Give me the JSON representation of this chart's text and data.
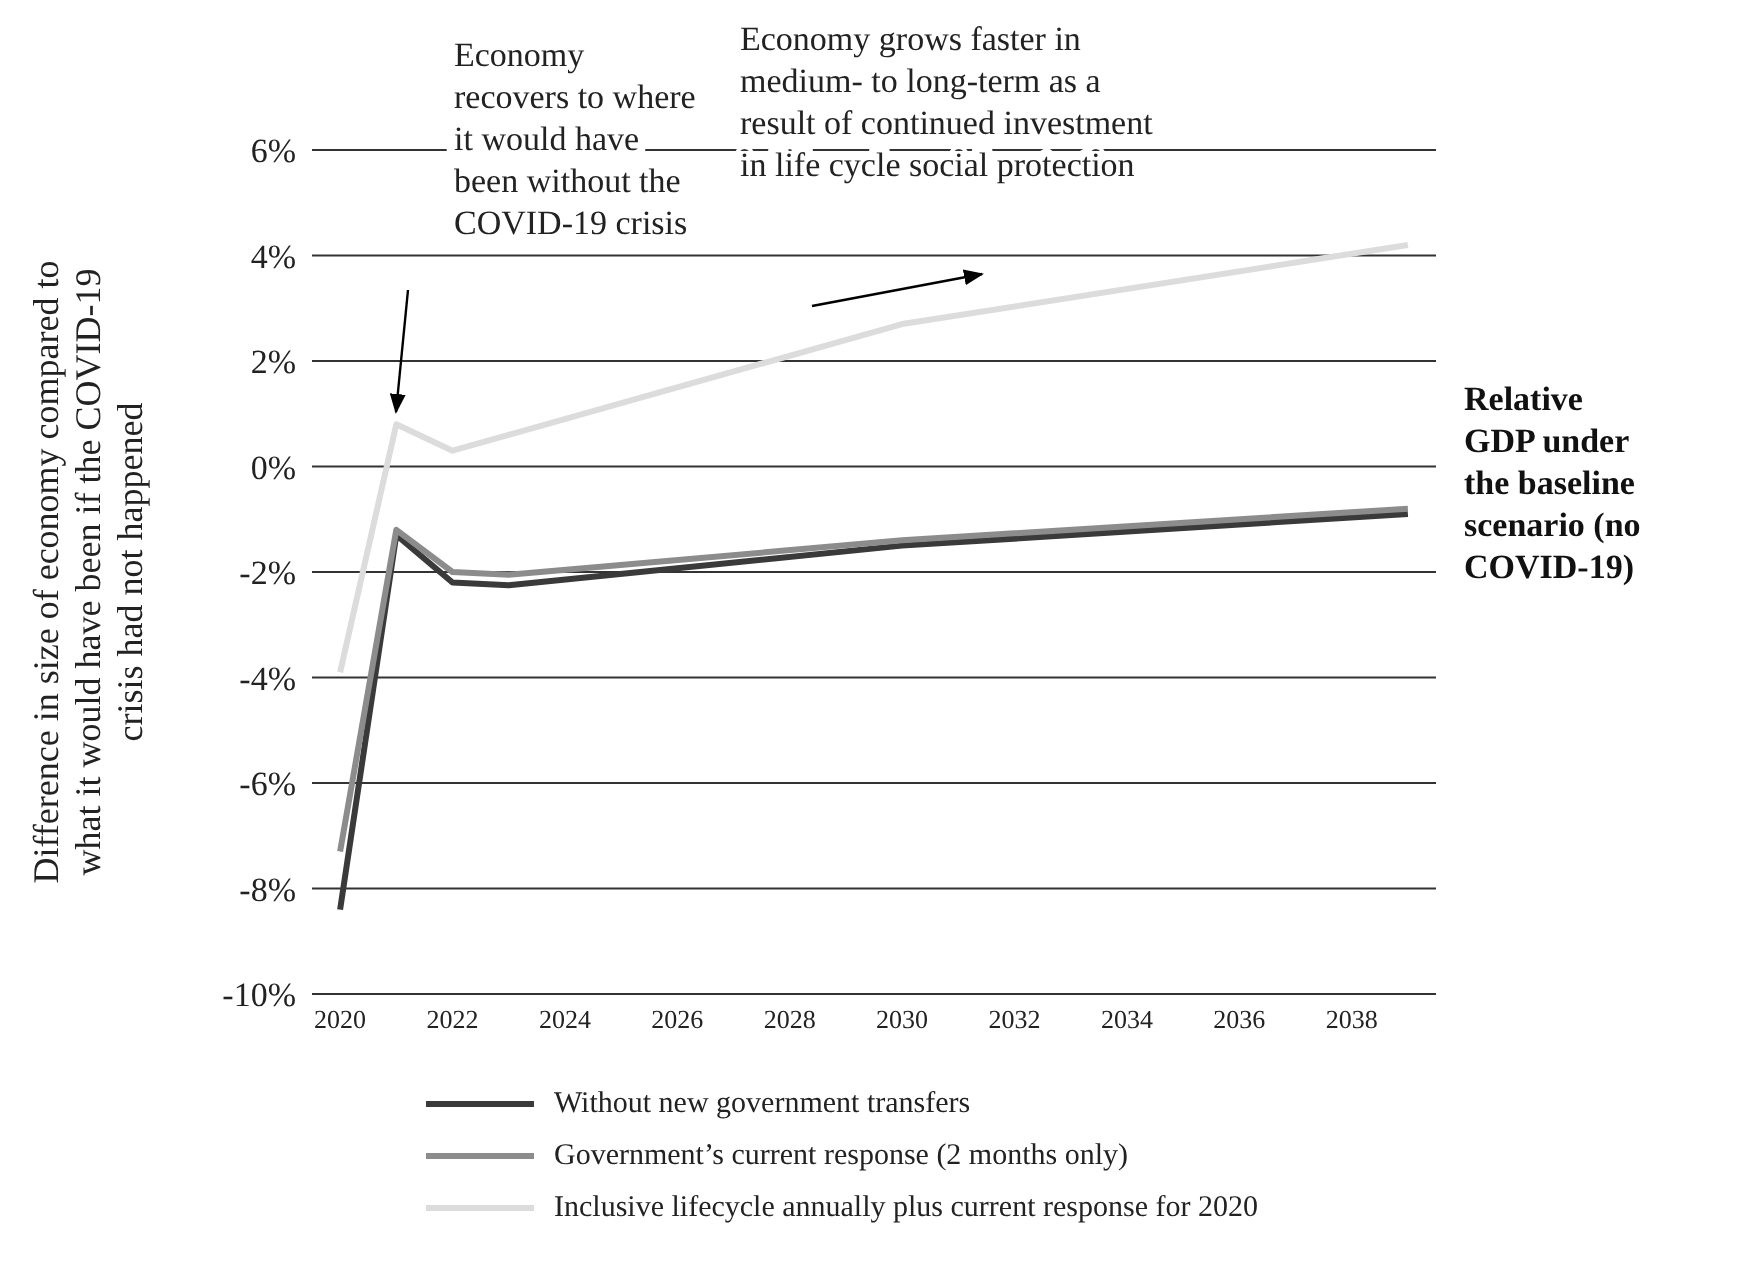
{
  "chart_data": {
    "type": "line",
    "ylabel": "Difference in size of economy compared to\nwhat it would have been if the COVID-19\ncrisis had not happened",
    "x": [
      2020,
      2021,
      2022,
      2023,
      2030,
      2039
    ],
    "series": [
      {
        "name": "Without new government transfers",
        "color": "#3a3a3a",
        "values": [
          -8.4,
          -1.3,
          -2.2,
          -2.25,
          -1.5,
          -0.9
        ]
      },
      {
        "name": "Government’s current response (2 months only)",
        "color": "#8c8c8c",
        "values": [
          -7.3,
          -1.2,
          -2.0,
          -2.05,
          -1.4,
          -0.8
        ]
      },
      {
        "name": "Inclusive lifecycle annually plus current response for 2020",
        "color": "#dcdcdc",
        "values": [
          -3.9,
          0.8,
          0.3,
          0.6,
          2.7,
          4.2
        ]
      }
    ],
    "xlim": [
      2019.5,
      2039.5
    ],
    "xticks": [
      2020,
      2022,
      2024,
      2026,
      2028,
      2030,
      2032,
      2034,
      2036,
      2038
    ],
    "ylim": [
      -10,
      6
    ],
    "yticks": [
      {
        "value": -10,
        "label": "-10%"
      },
      {
        "value": -8,
        "label": "-8%"
      },
      {
        "value": -6,
        "label": "-6%"
      },
      {
        "value": -4,
        "label": "-4%"
      },
      {
        "value": -2,
        "label": "-2%"
      },
      {
        "value": 0,
        "label": "0%"
      },
      {
        "value": 2,
        "label": "2%"
      },
      {
        "value": 4,
        "label": "4%"
      },
      {
        "value": 6,
        "label": "6%"
      }
    ],
    "annotations": [
      "Economy\nrecovers to where\nit would have\nbeen without the\nCOVID-19 crisis",
      "Economy grows faster in\nmedium- to long-term as a\nresult of continued investment\nin life cycle social protection",
      "Relative\nGDP under\nthe baseline\nscenario (no\nCOVID-19)"
    ],
    "grid": "y",
    "legend": "bottom",
    "marker": "none",
    "line_style": "solid"
  }
}
